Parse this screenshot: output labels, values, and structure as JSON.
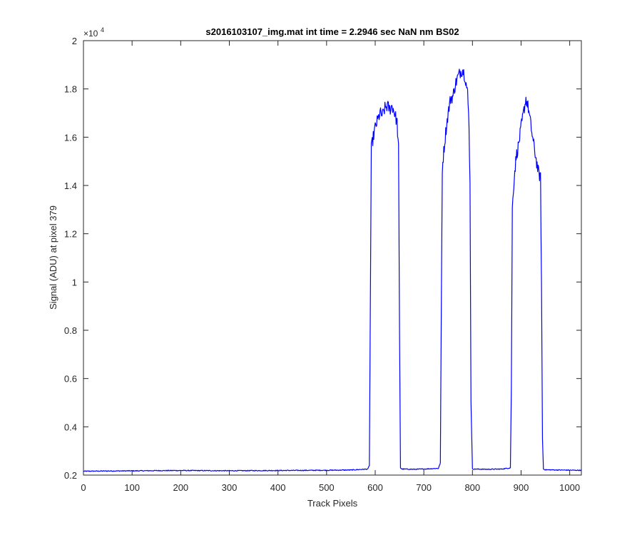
{
  "chart_data": {
    "type": "line",
    "title": "s2016103107_img.mat int time = 2.2946 sec  NaN nm BS02",
    "xlabel": "Track Pixels",
    "ylabel": "Signal (ADU) at pixel 379",
    "xlim": [
      0,
      1024
    ],
    "ylim": [
      2000,
      20000
    ],
    "x_ticks": [
      0,
      100,
      200,
      300,
      400,
      500,
      600,
      700,
      800,
      900,
      1000
    ],
    "y_ticks": [
      2000,
      4000,
      6000,
      8000,
      10000,
      12000,
      14000,
      16000,
      18000,
      20000
    ],
    "y_tick_labels": [
      "0.2",
      "0.4",
      "0.6",
      "0.8",
      "1",
      "1.2",
      "1.4",
      "1.6",
      "1.8",
      "2"
    ],
    "y_multiplier": {
      "base": "×10",
      "exponent": "4"
    },
    "grid": false,
    "line_color": "#0000ff",
    "series": [
      {
        "x": [
          0,
          50,
          100,
          150,
          200,
          250,
          300,
          350,
          400,
          450,
          500,
          550,
          585,
          588,
          590,
          592,
          595,
          600,
          605,
          610,
          615,
          620,
          625,
          630,
          635,
          640,
          645,
          648,
          650,
          652,
          655,
          680,
          700,
          730,
          734,
          736,
          738,
          740,
          745,
          750,
          755,
          760,
          765,
          770,
          775,
          780,
          785,
          790,
          793,
          795,
          797,
          800,
          830,
          860,
          878,
          880,
          882,
          884,
          887,
          890,
          895,
          900,
          905,
          910,
          915,
          920,
          925,
          930,
          935,
          940,
          942,
          944,
          946,
          950,
          980,
          1010,
          1024
        ],
        "y": [
          2160,
          2170,
          2175,
          2185,
          2190,
          2185,
          2180,
          2185,
          2190,
          2195,
          2200,
          2210,
          2250,
          2400,
          9000,
          15500,
          15900,
          16400,
          16700,
          17000,
          16900,
          17200,
          17300,
          17150,
          17300,
          17000,
          16600,
          15500,
          8000,
          2300,
          2250,
          2240,
          2250,
          2280,
          2500,
          9000,
          14700,
          15200,
          16200,
          17000,
          17600,
          17700,
          18200,
          18500,
          18700,
          18800,
          18500,
          17800,
          16500,
          14000,
          5000,
          2250,
          2240,
          2250,
          2300,
          5500,
          13000,
          13800,
          14600,
          15200,
          15700,
          16400,
          17000,
          17600,
          17200,
          16500,
          15800,
          15200,
          14600,
          14300,
          10000,
          3500,
          2250,
          2220,
          2210,
          2200,
          2200
        ]
      }
    ]
  }
}
